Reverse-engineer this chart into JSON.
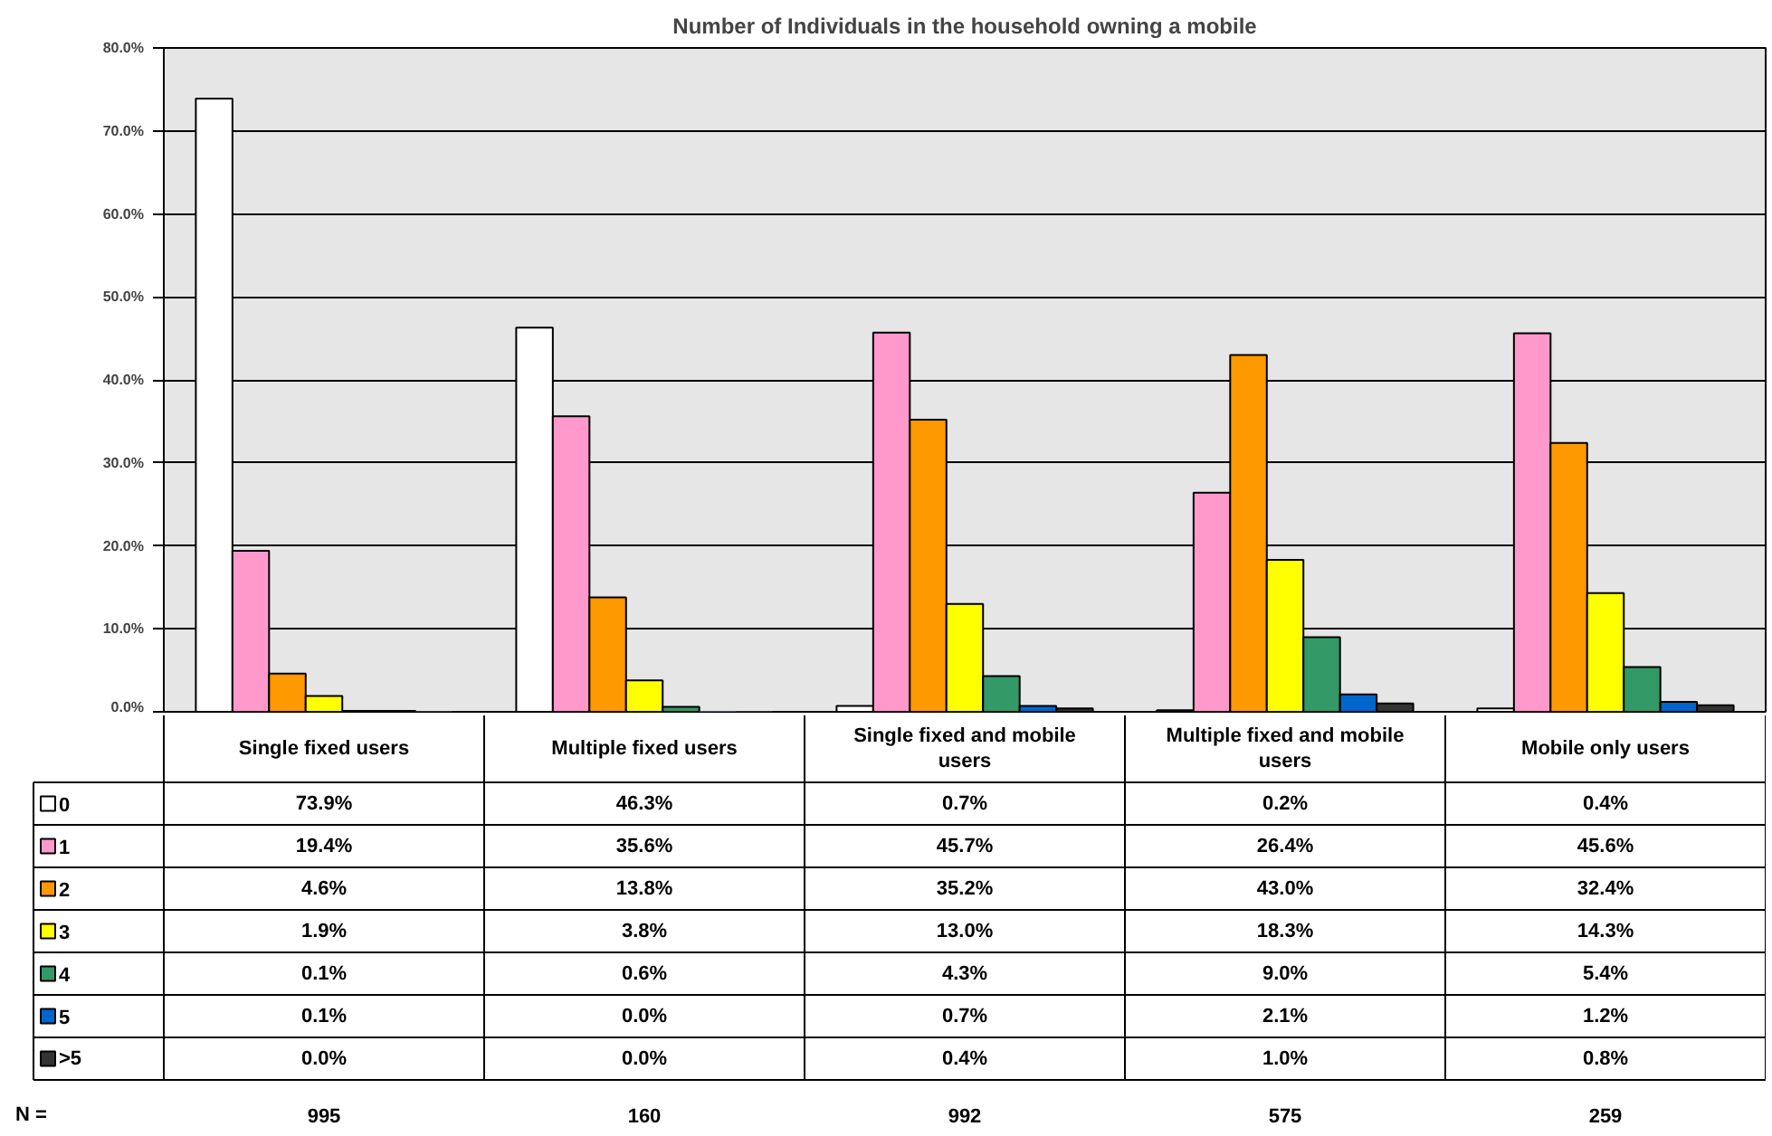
{
  "chart_data": {
    "type": "bar",
    "title": "Number of Individuals in the household owning a mobile",
    "categories": [
      "Single fixed users",
      "Multiple fixed users",
      "Single fixed and mobile users",
      "Multiple fixed and mobile users",
      "Mobile only users"
    ],
    "series": [
      {
        "name": "0",
        "color": "#ffffff",
        "values": [
          73.9,
          46.3,
          0.7,
          0.2,
          0.4
        ],
        "value_labels": [
          "73.9%",
          "46.3%",
          "0.7%",
          "0.2%",
          "0.4%"
        ]
      },
      {
        "name": "1",
        "color": "#ff99cc",
        "values": [
          19.4,
          35.6,
          45.7,
          26.4,
          45.6
        ],
        "value_labels": [
          "19.4%",
          "35.6%",
          "45.7%",
          "26.4%",
          "45.6%"
        ]
      },
      {
        "name": "2",
        "color": "#ff9900",
        "values": [
          4.6,
          13.8,
          35.2,
          43.0,
          32.4
        ],
        "value_labels": [
          "4.6%",
          "13.8%",
          "35.2%",
          "43.0%",
          "32.4%"
        ]
      },
      {
        "name": "3",
        "color": "#ffff00",
        "values": [
          1.9,
          3.8,
          13.0,
          18.3,
          14.3
        ],
        "value_labels": [
          "1.9%",
          "3.8%",
          "13.0%",
          "18.3%",
          "14.3%"
        ]
      },
      {
        "name": "4",
        "color": "#339966",
        "values": [
          0.1,
          0.6,
          4.3,
          9.0,
          5.4
        ],
        "value_labels": [
          "0.1%",
          "0.6%",
          "4.3%",
          "9.0%",
          "5.4%"
        ]
      },
      {
        "name": "5",
        "color": "#0066cc",
        "values": [
          0.1,
          0.0,
          0.7,
          2.1,
          1.2
        ],
        "value_labels": [
          "0.1%",
          "0.0%",
          "0.7%",
          "2.1%",
          "1.2%"
        ]
      },
      {
        "name": ">5",
        "color": "#333333",
        "values": [
          0.0,
          0.0,
          0.4,
          1.0,
          0.8
        ],
        "value_labels": [
          "0.0%",
          "0.0%",
          "0.4%",
          "1.0%",
          "0.8%"
        ]
      }
    ],
    "ylim": [
      0,
      80
    ],
    "yticks": [
      {
        "value": 0,
        "label": "0.0%"
      },
      {
        "value": 10,
        "label": "10.0%"
      },
      {
        "value": 20,
        "label": "20.0%"
      },
      {
        "value": 30,
        "label": "30.0%"
      },
      {
        "value": 40,
        "label": "40.0%"
      },
      {
        "value": 50,
        "label": "50.0%"
      },
      {
        "value": 60,
        "label": "60.0%"
      },
      {
        "value": 70,
        "label": "70.0%"
      },
      {
        "value": 80,
        "label": "80.0%"
      }
    ],
    "grid": "y",
    "legend": "bottom",
    "annotations": [
      "N =",
      "995",
      "160",
      "992",
      "575",
      "259"
    ]
  }
}
